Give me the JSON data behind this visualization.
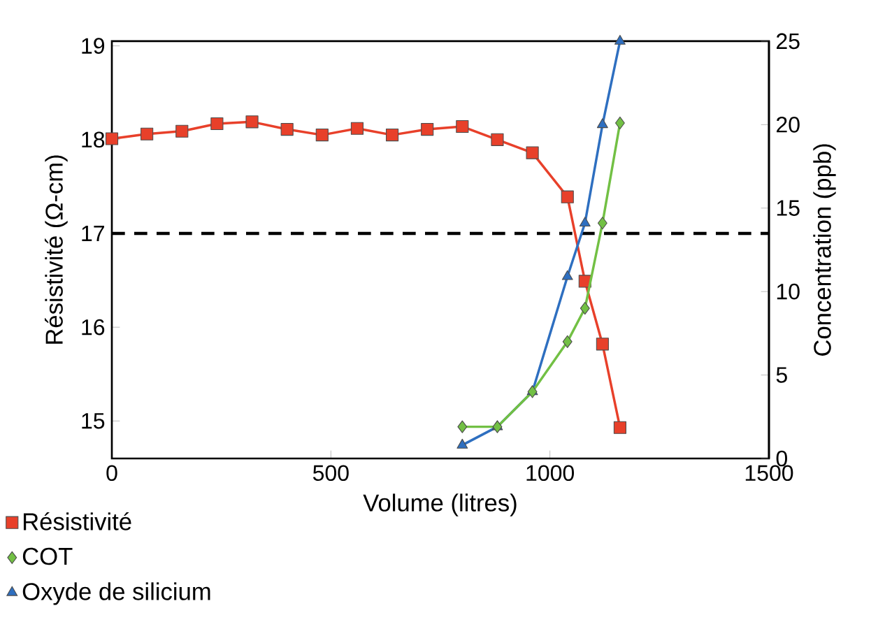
{
  "chart_data": {
    "type": "line",
    "xlabel": "Volume (litres)",
    "ylabel": "Résistivité (Ω-cm)",
    "y2label": "Concentration (ppb)",
    "xlim": [
      0,
      1500
    ],
    "xticks": [
      0,
      500,
      1000,
      1500
    ],
    "ylim": [
      14.6,
      19.05
    ],
    "yticks": [
      15,
      16,
      17,
      18,
      19
    ],
    "y2lim": [
      0,
      25
    ],
    "y2ticks": [
      0,
      5,
      10,
      15,
      20,
      25
    ],
    "legend": "bottom left",
    "ref_lines": [
      {
        "axis": "y",
        "value": 17,
        "color": "#000000",
        "line_style": "dashed"
      }
    ],
    "series": [
      {
        "name": "Résistivité",
        "color": "#e8402a",
        "marker": "square",
        "x": [
          0,
          80,
          160,
          240,
          320,
          400,
          480,
          560,
          640,
          720,
          800,
          880,
          960,
          1040,
          1080,
          1120,
          1160
        ],
        "values": [
          18.01,
          18.06,
          18.09,
          18.17,
          18.19,
          18.11,
          18.05,
          18.12,
          18.05,
          18.11,
          18.14,
          18.0,
          17.86,
          17.39,
          16.49,
          15.82,
          14.93
        ]
      },
      {
        "name": "COT",
        "color": "#72c044",
        "marker": "diamond",
        "axis": "y2",
        "x": [
          800,
          880,
          960,
          1040,
          1080,
          1120,
          1160
        ],
        "values": [
          1.9,
          1.9,
          4.0,
          7.0,
          9.0,
          14.1,
          20.1
        ]
      },
      {
        "name": "Oxyde de silicium",
        "color": "#2e6fc0",
        "marker": "triangle",
        "axis": "y2",
        "x": [
          800,
          880,
          960,
          1040,
          1080,
          1120,
          1160
        ],
        "values": [
          0.8,
          1.9,
          4.0,
          10.9,
          14.1,
          20.0,
          25.0
        ]
      }
    ]
  }
}
